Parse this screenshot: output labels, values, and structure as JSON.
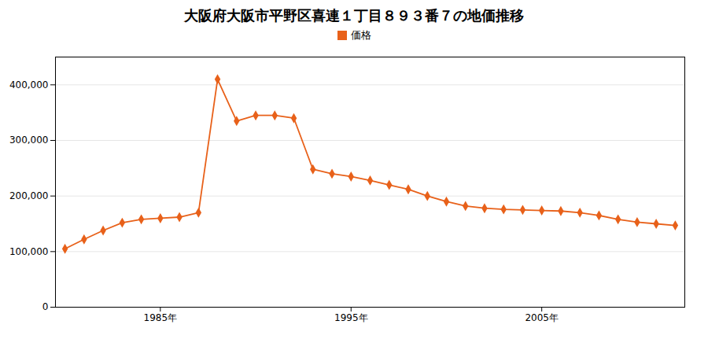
{
  "chart_data": {
    "type": "line",
    "title": "大阪府大阪市平野区喜連１丁目８９３番７の地価推移",
    "x": [
      1980,
      1981,
      1982,
      1983,
      1984,
      1985,
      1986,
      1987,
      1988,
      1989,
      1990,
      1991,
      1992,
      1993,
      1994,
      1995,
      1996,
      1997,
      1998,
      1999,
      2000,
      2001,
      2002,
      2003,
      2004,
      2005,
      2006,
      2007,
      2008,
      2009,
      2010,
      2011,
      2012
    ],
    "series": [
      {
        "name": "価格",
        "color": "#E8611A",
        "marker": "diamond",
        "values": [
          105000,
          122000,
          138000,
          152000,
          158000,
          160000,
          162000,
          170000,
          410000,
          335000,
          345000,
          345000,
          340000,
          248000,
          240000,
          235000,
          228000,
          220000,
          212000,
          200000,
          190000,
          182000,
          178000,
          176000,
          175000,
          174000,
          173000,
          170000,
          165000,
          158000,
          153000,
          150000,
          147000
        ]
      }
    ],
    "xlim": [
      1979.5,
      2012.5
    ],
    "xticks": [
      {
        "value": 1985,
        "label": "1985年"
      },
      {
        "value": 1995,
        "label": "1995年"
      },
      {
        "value": 2005,
        "label": "2005年"
      }
    ],
    "ylim": [
      0,
      450000
    ],
    "yticks": [
      0,
      {
        "value": 100000,
        "label": "100,000"
      },
      {
        "value": 200000,
        "label": "200,000"
      },
      {
        "value": 300000,
        "label": "300,000"
      },
      {
        "value": 400000,
        "label": "400,000"
      }
    ],
    "grid": true,
    "legend": "top"
  }
}
